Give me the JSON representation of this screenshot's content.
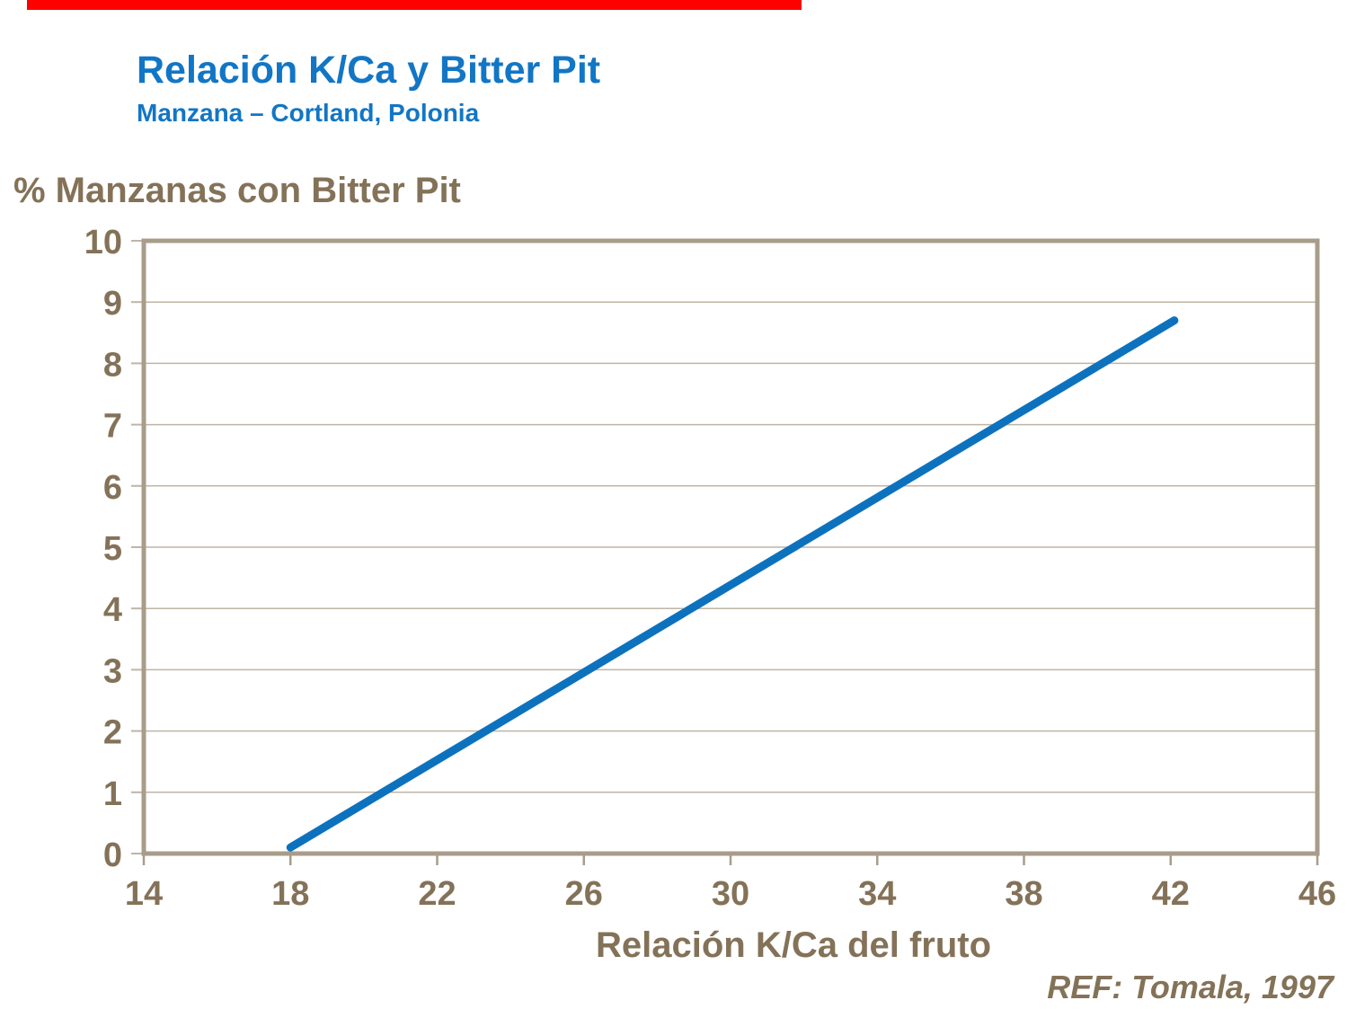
{
  "accent_bar": {
    "color": "#fe0000"
  },
  "header": {
    "title": "Relación K/Ca y Bitter Pit",
    "subtitle": "Manzana – Cortland, Polonia",
    "color": "#1276c5"
  },
  "ref_note": "REF: Tomala, 1997",
  "colors": {
    "text_taupe": "#847258",
    "axis": "#a89c8a",
    "grid": "#bfb5a5",
    "line_blue": "#0d72be",
    "background": "#ffffff"
  },
  "chart_data": {
    "type": "line",
    "title": "Relación K/Ca y Bitter Pit",
    "subtitle": "Manzana – Cortland, Polonia",
    "xlabel": "Relación K/Ca del fruto",
    "ylabel": "% Manzanas con Bitter Pit",
    "xlim": [
      14,
      46
    ],
    "ylim": [
      0,
      10
    ],
    "xticks": [
      14,
      18,
      22,
      26,
      30,
      34,
      38,
      42,
      46
    ],
    "yticks": [
      0,
      1,
      2,
      3,
      4,
      5,
      6,
      7,
      8,
      9,
      10
    ],
    "grid": "horizontal",
    "legend": "none",
    "series": [
      {
        "name": "% Manzanas con Bitter Pit",
        "points": [
          [
            18,
            0.1
          ],
          [
            42.1,
            8.7
          ]
        ],
        "color": "#0d72be"
      }
    ],
    "annotation": "REF: Tomala, 1997"
  }
}
